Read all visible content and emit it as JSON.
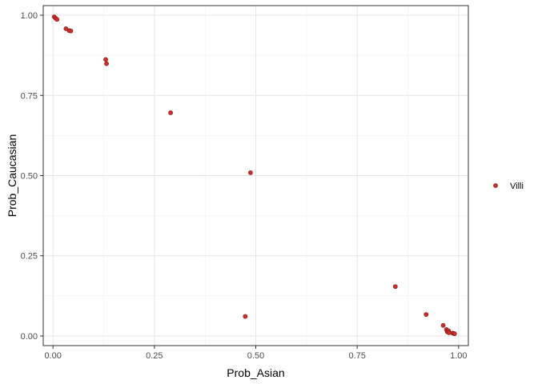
{
  "chart_data": {
    "type": "scatter",
    "xlabel": "Prob_Asian",
    "ylabel": "Prob_Caucasian",
    "xlim": [
      -0.024,
      1.024
    ],
    "ylim": [
      -0.03,
      1.03
    ],
    "x_ticks": [
      0.0,
      0.25,
      0.5,
      0.75,
      1.0
    ],
    "y_ticks": [
      0.0,
      0.25,
      0.5,
      0.75,
      1.0
    ],
    "x_tick_labels": [
      "0.00",
      "0.25",
      "0.50",
      "0.75",
      "1.00"
    ],
    "y_tick_labels": [
      "0.00",
      "0.25",
      "0.50",
      "0.75",
      "1.00"
    ],
    "grid": true,
    "legend_position": "right",
    "series": [
      {
        "name": "Villi",
        "color": "#c8302b",
        "points": [
          {
            "x": 0.003,
            "y": 0.995
          },
          {
            "x": 0.007,
            "y": 0.99
          },
          {
            "x": 0.01,
            "y": 0.987
          },
          {
            "x": 0.032,
            "y": 0.958
          },
          {
            "x": 0.04,
            "y": 0.952
          },
          {
            "x": 0.044,
            "y": 0.951
          },
          {
            "x": 0.13,
            "y": 0.862
          },
          {
            "x": 0.132,
            "y": 0.849
          },
          {
            "x": 0.29,
            "y": 0.696
          },
          {
            "x": 0.487,
            "y": 0.509
          },
          {
            "x": 0.474,
            "y": 0.061
          },
          {
            "x": 0.844,
            "y": 0.154
          },
          {
            "x": 0.92,
            "y": 0.067
          },
          {
            "x": 0.962,
            "y": 0.033
          },
          {
            "x": 0.97,
            "y": 0.02
          },
          {
            "x": 0.972,
            "y": 0.013
          },
          {
            "x": 0.975,
            "y": 0.016
          },
          {
            "x": 0.976,
            "y": 0.01
          },
          {
            "x": 0.985,
            "y": 0.009
          },
          {
            "x": 0.988,
            "y": 0.008
          },
          {
            "x": 0.99,
            "y": 0.007
          }
        ]
      }
    ]
  }
}
